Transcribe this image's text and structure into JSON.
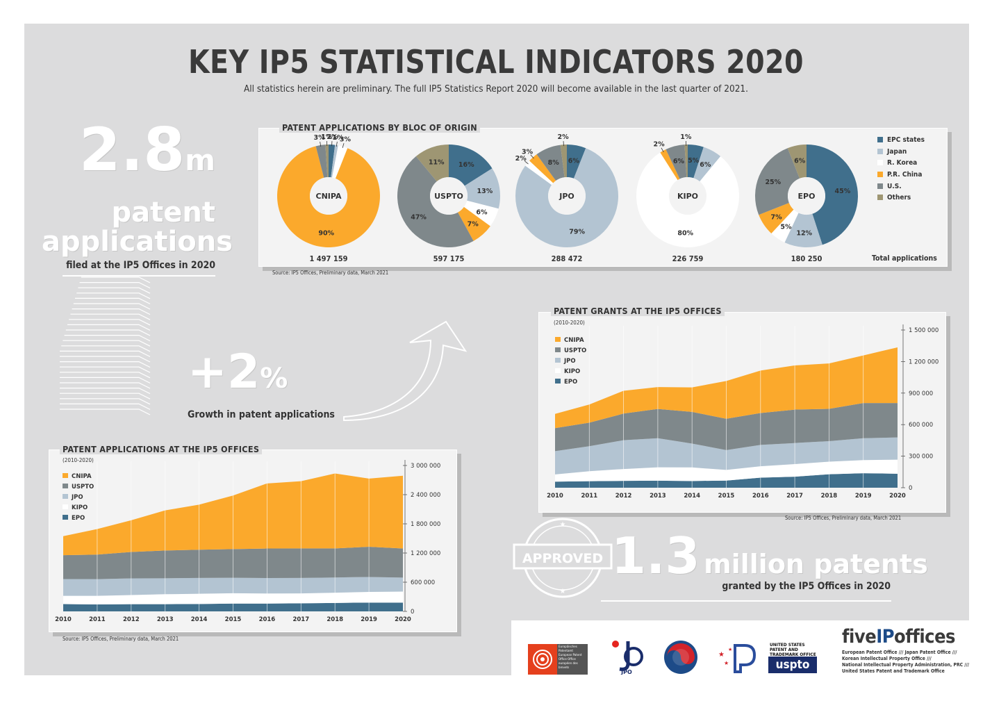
{
  "header": {
    "title": "KEY IP5 STATISTICAL INDICATORS 2020",
    "subtitle": "All statistics herein are preliminary. The full IP5 Statistics Report 2020 will become available in the last quarter of 2021."
  },
  "kpi_applications": {
    "value": "2.8",
    "unit": "m",
    "line1": "patent",
    "line2": "applications",
    "caption": "filed at the IP5 Offices in 2020"
  },
  "kpi_growth": {
    "value": "+2",
    "unit": "%",
    "caption": "Growth in patent applications"
  },
  "kpi_grants": {
    "stamp": "APPROVED",
    "value": "1.3",
    "unit": "million patents",
    "caption": "granted by the IP5 Offices in 2020"
  },
  "colors": {
    "epc": "#406f8c",
    "japan": "#b3c4d2",
    "korea": "#ffffff",
    "china": "#fba92c",
    "us": "#7f888b",
    "others": "#9e9673"
  },
  "chart_data": [
    {
      "type": "pie",
      "title": "PATENT APPLICATIONS BY BLOC OF ORIGIN",
      "legend": [
        "EPC states",
        "Japan",
        "R. Korea",
        "P.R. China",
        "U.S.",
        "Others"
      ],
      "total_label": "Total applications",
      "source": "Source: IP5 Offices, Preliminary data, March 2021",
      "offices": [
        {
          "name": "CNIPA",
          "total": "1 497 159",
          "values": [
            2,
            1,
            3,
            90,
            3,
            1
          ],
          "labels": [
            "2%",
            "1%",
            "3%",
            "90%",
            "3%",
            "1%"
          ]
        },
        {
          "name": "USPTO",
          "total": "597 175",
          "values": [
            16,
            13,
            6,
            7,
            47,
            11
          ],
          "labels": [
            "16%",
            "13%",
            "6%",
            "7%",
            "47%",
            "11%"
          ]
        },
        {
          "name": "JPO",
          "total": "288 472",
          "values": [
            6,
            79,
            2,
            3,
            8,
            2
          ],
          "labels": [
            "6%",
            "79%",
            "2%",
            "3%",
            "8%",
            "2%"
          ]
        },
        {
          "name": "KIPO",
          "total": "226 759",
          "values": [
            5,
            6,
            80,
            2,
            6,
            1
          ],
          "labels": [
            "5%",
            "6%",
            "80%",
            "2%",
            "6%",
            "1%"
          ]
        },
        {
          "name": "EPO",
          "total": "180 250",
          "values": [
            45,
            12,
            5,
            7,
            25,
            6
          ],
          "labels": [
            "45%",
            "12%",
            "5%",
            "7%",
            "25%",
            "6%"
          ]
        }
      ]
    },
    {
      "type": "area",
      "title": "PATENT APPLICATIONS AT THE IP5 OFFICES",
      "subtitle": "(2010-2020)",
      "x": [
        "2010",
        "2011",
        "2012",
        "2013",
        "2014",
        "2015",
        "2016",
        "2017",
        "2018",
        "2019",
        "2020"
      ],
      "ylim": [
        0,
        3000000
      ],
      "yticks": [
        0,
        600000,
        1200000,
        1800000,
        2400000,
        3000000
      ],
      "ytick_labels": [
        "0",
        "600 000",
        "1 200 000",
        "1 800 000",
        "2 400 000",
        "3 000 000"
      ],
      "series": [
        {
          "name": "EPO",
          "values": [
            150000,
            142000,
            148000,
            148000,
            152000,
            160000,
            160000,
            166000,
            174000,
            181000,
            180000
          ]
        },
        {
          "name": "KIPO",
          "values": [
            170000,
            178000,
            188000,
            205000,
            210000,
            213000,
            208000,
            204000,
            210000,
            219000,
            227000
          ]
        },
        {
          "name": "JPO",
          "values": [
            345000,
            343000,
            343000,
            328000,
            326000,
            318000,
            318000,
            318000,
            313000,
            308000,
            288000
          ]
        },
        {
          "name": "USPTO",
          "values": [
            490000,
            504000,
            542000,
            571000,
            579000,
            589000,
            606000,
            607000,
            597000,
            621000,
            597000
          ]
        },
        {
          "name": "CNIPA",
          "values": [
            391000,
            526000,
            653000,
            825000,
            928000,
            1102000,
            1339000,
            1382000,
            1542000,
            1401000,
            1497000
          ]
        }
      ],
      "legend": [
        "CNIPA",
        "USPTO",
        "JPO",
        "KIPO",
        "EPO"
      ],
      "source": "Source: IP5 Offices, Preliminary data, March 2021"
    },
    {
      "type": "area",
      "title": "PATENT GRANTS AT THE IP5 OFFICES",
      "subtitle": "(2010-2020)",
      "x": [
        "2010",
        "2011",
        "2012",
        "2013",
        "2014",
        "2015",
        "2016",
        "2017",
        "2018",
        "2019",
        "2020"
      ],
      "ylim": [
        0,
        1500000
      ],
      "yticks": [
        0,
        300000,
        600000,
        900000,
        1200000,
        1500000
      ],
      "ytick_labels": [
        "0",
        "300 000",
        "600 000",
        "900 000",
        "1 200 000",
        "1 500 000"
      ],
      "series": [
        {
          "name": "EPO",
          "values": [
            58000,
            62000,
            65000,
            67000,
            64000,
            68000,
            96000,
            105000,
            128000,
            138000,
            133000
          ]
        },
        {
          "name": "KIPO",
          "values": [
            68000,
            95000,
            113000,
            127000,
            129000,
            101000,
            108000,
            120000,
            120000,
            125000,
            134000
          ]
        },
        {
          "name": "JPO",
          "values": [
            222000,
            238000,
            274000,
            277000,
            227000,
            189000,
            203000,
            200000,
            195000,
            208000,
            211000
          ]
        },
        {
          "name": "USPTO",
          "values": [
            219000,
            224000,
            253000,
            278000,
            301000,
            298000,
            303000,
            318000,
            307000,
            334000,
            327000
          ]
        },
        {
          "name": "CNIPA",
          "values": [
            135000,
            172000,
            217000,
            208000,
            233000,
            359000,
            404000,
            420000,
            432000,
            453000,
            530000
          ]
        }
      ],
      "legend": [
        "CNIPA",
        "USPTO",
        "JPO",
        "KIPO",
        "EPO"
      ],
      "source": "Source: IP5 Offices, Preliminary data, March 2021"
    }
  ],
  "footer": {
    "brand_prefix": "five",
    "brand_mid": "IP",
    "brand_suffix": "offices",
    "lines": [
      "European Patent Office /// Japan Patent Office ///",
      "Korean Intellectual Property Office ///",
      "National Intellectual Property Administration, PRC ///",
      "United States Patent and Trademark Office"
    ],
    "logos": {
      "epo_text": "Europäisches Patentamt European Patent Office Office européen des brevets",
      "jpo_text": "JPO",
      "uspto_text": "UNITED STATES PATENT AND TRADEMARK OFFICE",
      "uspto_word": "uspto"
    }
  }
}
